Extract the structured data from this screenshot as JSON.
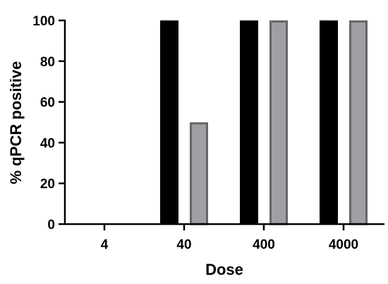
{
  "chart_data": {
    "type": "bar",
    "xlabel": "Dose",
    "ylabel": "% qPCR positive",
    "categories": [
      "4",
      "40",
      "400",
      "4000"
    ],
    "ylim": [
      0,
      100
    ],
    "yticks": [
      0,
      20,
      40,
      60,
      80,
      100
    ],
    "grid": false,
    "legend": "none",
    "series": [
      {
        "values": [
          0,
          100,
          100,
          100
        ],
        "color": "#000000",
        "stroke": "#000000"
      },
      {
        "values": [
          0,
          50,
          100,
          100
        ],
        "color": "#a0a0a4",
        "stroke": "#666666"
      }
    ]
  }
}
